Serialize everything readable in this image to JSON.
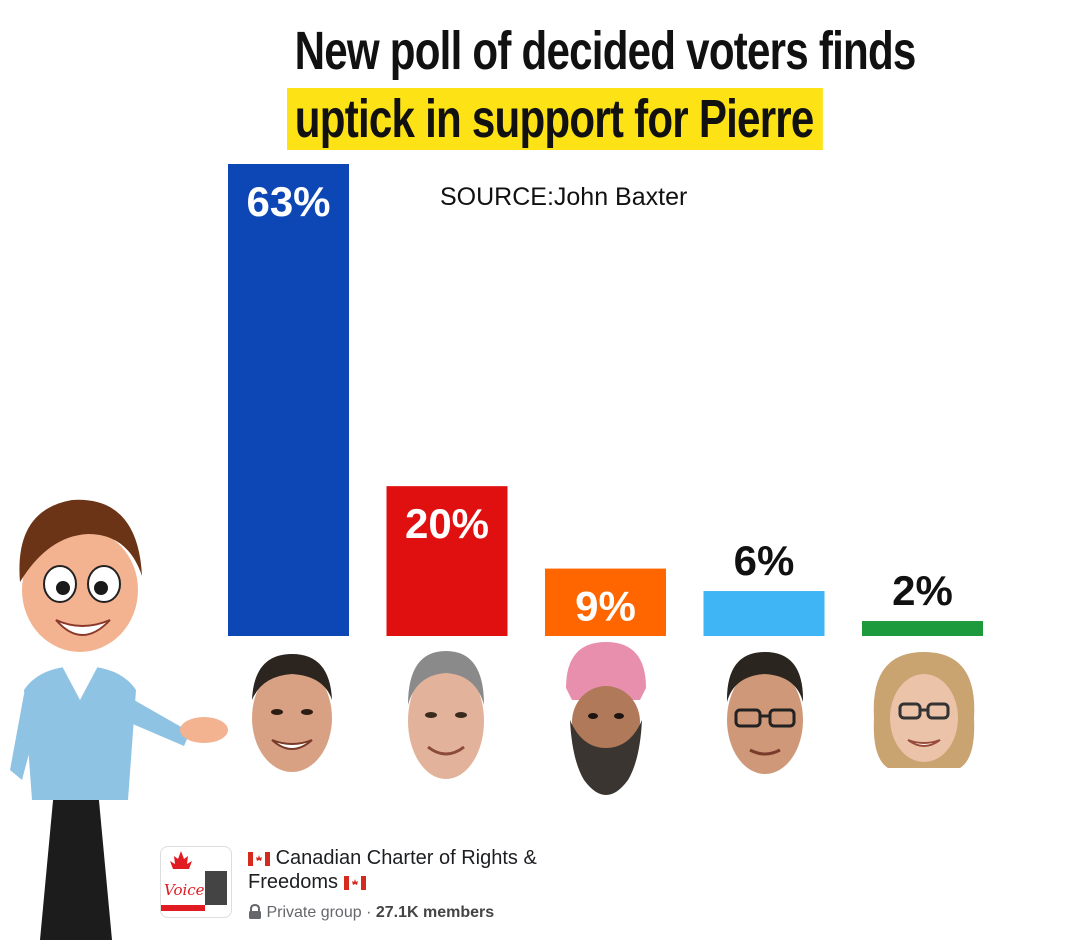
{
  "headline": {
    "line1": "New poll of decided voters finds",
    "line2": "uptick in support for Pierre"
  },
  "source": "SOURCE:John Baxter",
  "chart_data": {
    "type": "bar",
    "values": [
      63,
      20,
      9,
      6,
      2
    ],
    "labels": [
      "63%",
      "20%",
      "9%",
      "6%",
      "2%"
    ],
    "colors": [
      "#0d47b5",
      "#e01010",
      "#ff6600",
      "#3fb5f5",
      "#1d9a3c"
    ],
    "ylim": [
      0,
      63
    ]
  },
  "group": {
    "name_line1": "Canadian Charter of Rights &",
    "name_line2": "Freedoms",
    "privacy": "Private group",
    "separator": "·",
    "members": "27.1K members",
    "logo_text": "Voice!"
  }
}
